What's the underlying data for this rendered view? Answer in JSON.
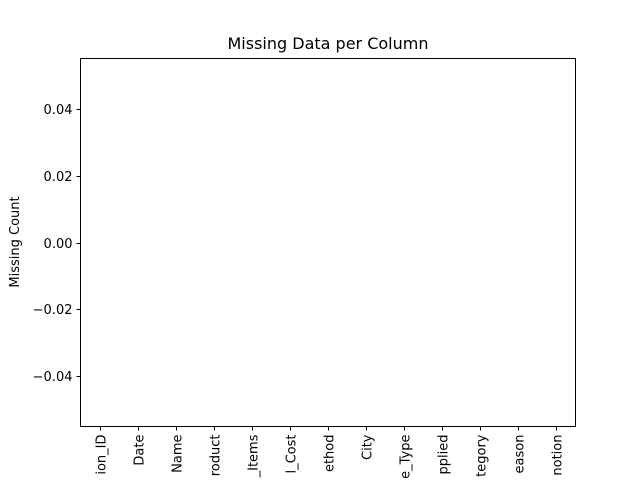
{
  "chart_data": {
    "type": "bar",
    "title": "Missing Data per Column",
    "xlabel": "",
    "ylabel": "Missing Count",
    "categories": [
      "ion_ID",
      "Date",
      "Name",
      "roduct",
      "_Items",
      "l_Cost",
      "ethod",
      "City",
      "e_Type",
      "pplied",
      "tegory",
      "eason",
      "notion"
    ],
    "values": [
      0,
      0,
      0,
      0,
      0,
      0,
      0,
      0,
      0,
      0,
      0,
      0,
      0
    ],
    "ylim": [
      -0.055,
      0.055
    ],
    "yticks": [
      0.04,
      0.02,
      0.0,
      -0.02,
      -0.04
    ],
    "ytick_labels": [
      "0.04",
      "0.02",
      "0.00",
      "−0.02",
      "−0.04"
    ],
    "grid": false,
    "bar_color": "#1f77b4"
  }
}
